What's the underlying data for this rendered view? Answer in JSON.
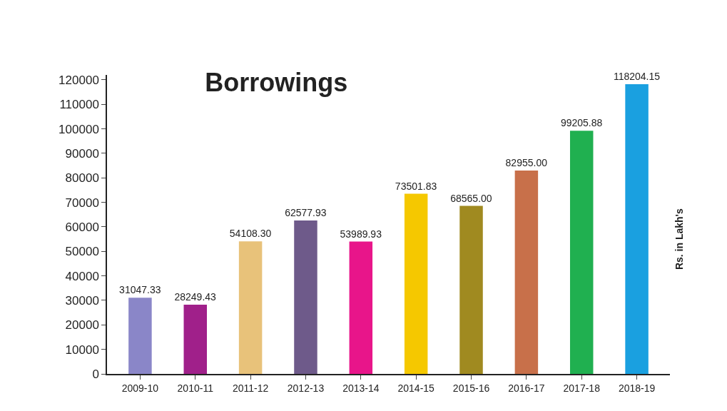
{
  "chart_data": {
    "type": "bar",
    "title": "Borrowings",
    "ylabel": "Rs. in Lakh's",
    "categories": [
      "2009-10",
      "2010-11",
      "2011-12",
      "2012-13",
      "2013-14",
      "2014-15",
      "2015-16",
      "2016-17",
      "2017-18",
      "2018-19"
    ],
    "values": [
      31047.33,
      28249.43,
      54108.3,
      62577.93,
      53989.93,
      73501.83,
      68565.0,
      82955.0,
      99205.88,
      118204.15
    ],
    "value_labels": [
      "31047.33",
      "28249.43",
      "54108.30",
      "62577.93",
      "53989.93",
      "73501.83",
      "68565.00",
      "82955.00",
      "99205.88",
      "118204.15"
    ],
    "colors": [
      "#8a86c8",
      "#a0208a",
      "#e8c27a",
      "#6e5a8a",
      "#e8158a",
      "#f5c800",
      "#a08a20",
      "#c8704a",
      "#20b050",
      "#1aa0e0"
    ],
    "ylim": [
      0,
      122000
    ],
    "yticks": [
      0,
      10000,
      20000,
      30000,
      40000,
      50000,
      60000,
      70000,
      80000,
      90000,
      100000,
      110000,
      120000
    ],
    "legend": false
  }
}
